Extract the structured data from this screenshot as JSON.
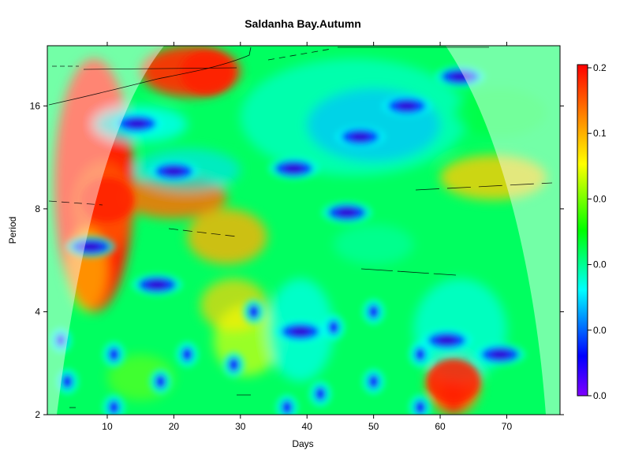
{
  "chart_data": {
    "type": "heatmap",
    "title": "Saldanha Bay.Autumn",
    "xlabel": "Days",
    "ylabel": "Period",
    "xlim": [
      1,
      78
    ],
    "ylim": [
      2,
      24
    ],
    "y_scale": "log2",
    "x_ticks": [
      10,
      20,
      30,
      40,
      50,
      60,
      70
    ],
    "x_tick_labels": [
      "10",
      "20",
      "30",
      "40",
      "50",
      "60",
      "70"
    ],
    "y_ticks": [
      2,
      4,
      8,
      16
    ],
    "y_tick_labels": [
      "2",
      "4",
      "8",
      "16"
    ],
    "colorbar": {
      "range": [
        0,
        0.2
      ],
      "tick_labels": [
        "0.2",
        "0.1",
        "0.0",
        "0.0",
        "0.0",
        "0.0"
      ],
      "colors": [
        "#ff0000",
        "#ff8000",
        "#ffff00",
        "#00ff00",
        "#00ffff",
        "#0000ff",
        "#8000ff"
      ]
    },
    "cone_of_influence": "shaded outside",
    "grid": false,
    "low_power_regions": [
      {
        "day": 14.5,
        "period": 14.2,
        "power": 0.0
      },
      {
        "day": 20.0,
        "period": 10.3,
        "power": 0.0
      },
      {
        "day": 38.0,
        "period": 10.5,
        "power": 0.0
      },
      {
        "day": 46.0,
        "period": 7.8,
        "power": 0.0
      },
      {
        "day": 48.0,
        "period": 13.0,
        "power": 0.0
      },
      {
        "day": 55.0,
        "period": 16.0,
        "power": 0.0
      },
      {
        "day": 63.0,
        "period": 19.5,
        "power": 0.0
      },
      {
        "day": 7.5,
        "period": 6.2,
        "power": 0.0
      },
      {
        "day": 17.5,
        "period": 4.8,
        "power": 0.0
      },
      {
        "day": 39.0,
        "period": 3.5,
        "power": 0.0
      },
      {
        "day": 61.0,
        "period": 3.3,
        "power": 0.0
      },
      {
        "day": 69.0,
        "period": 3.0,
        "power": 0.0
      }
    ],
    "high_power_regions": [
      {
        "day": 10.0,
        "period": 8.5,
        "power": 0.2
      },
      {
        "day": 25.0,
        "period": 20.0,
        "power": 0.2
      },
      {
        "day": 62.0,
        "period": 2.5,
        "power": 0.2
      }
    ]
  }
}
